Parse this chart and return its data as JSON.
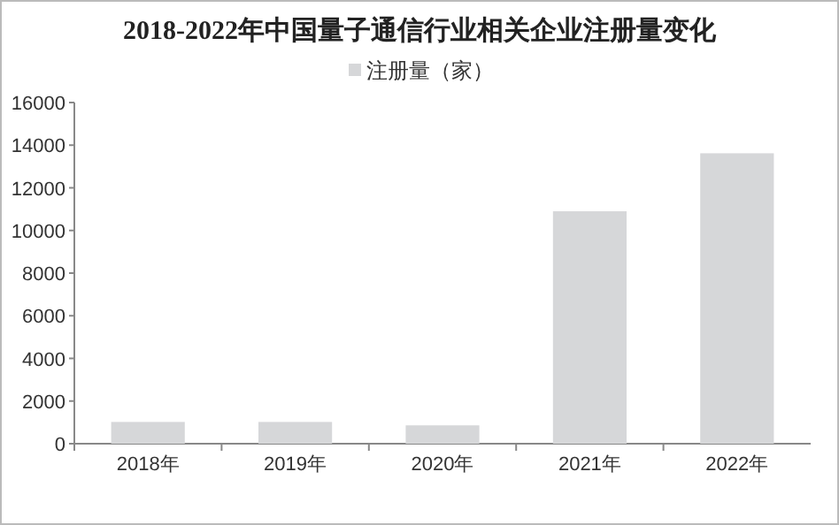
{
  "chart_data": {
    "type": "bar",
    "title": "2018-2022年中国量子通信行业相关企业注册量变化",
    "categories": [
      "2018年",
      "2019年",
      "2020年",
      "2021年",
      "2022年"
    ],
    "series": [
      {
        "name": "注册量（家）",
        "color": "#d6d7d9",
        "values": [
          1020,
          1020,
          860,
          10900,
          13620
        ]
      }
    ],
    "ylim": [
      0,
      16000
    ],
    "yticks": [
      0,
      2000,
      4000,
      6000,
      8000,
      10000,
      12000,
      14000,
      16000
    ],
    "legend": "top",
    "grid": false
  }
}
